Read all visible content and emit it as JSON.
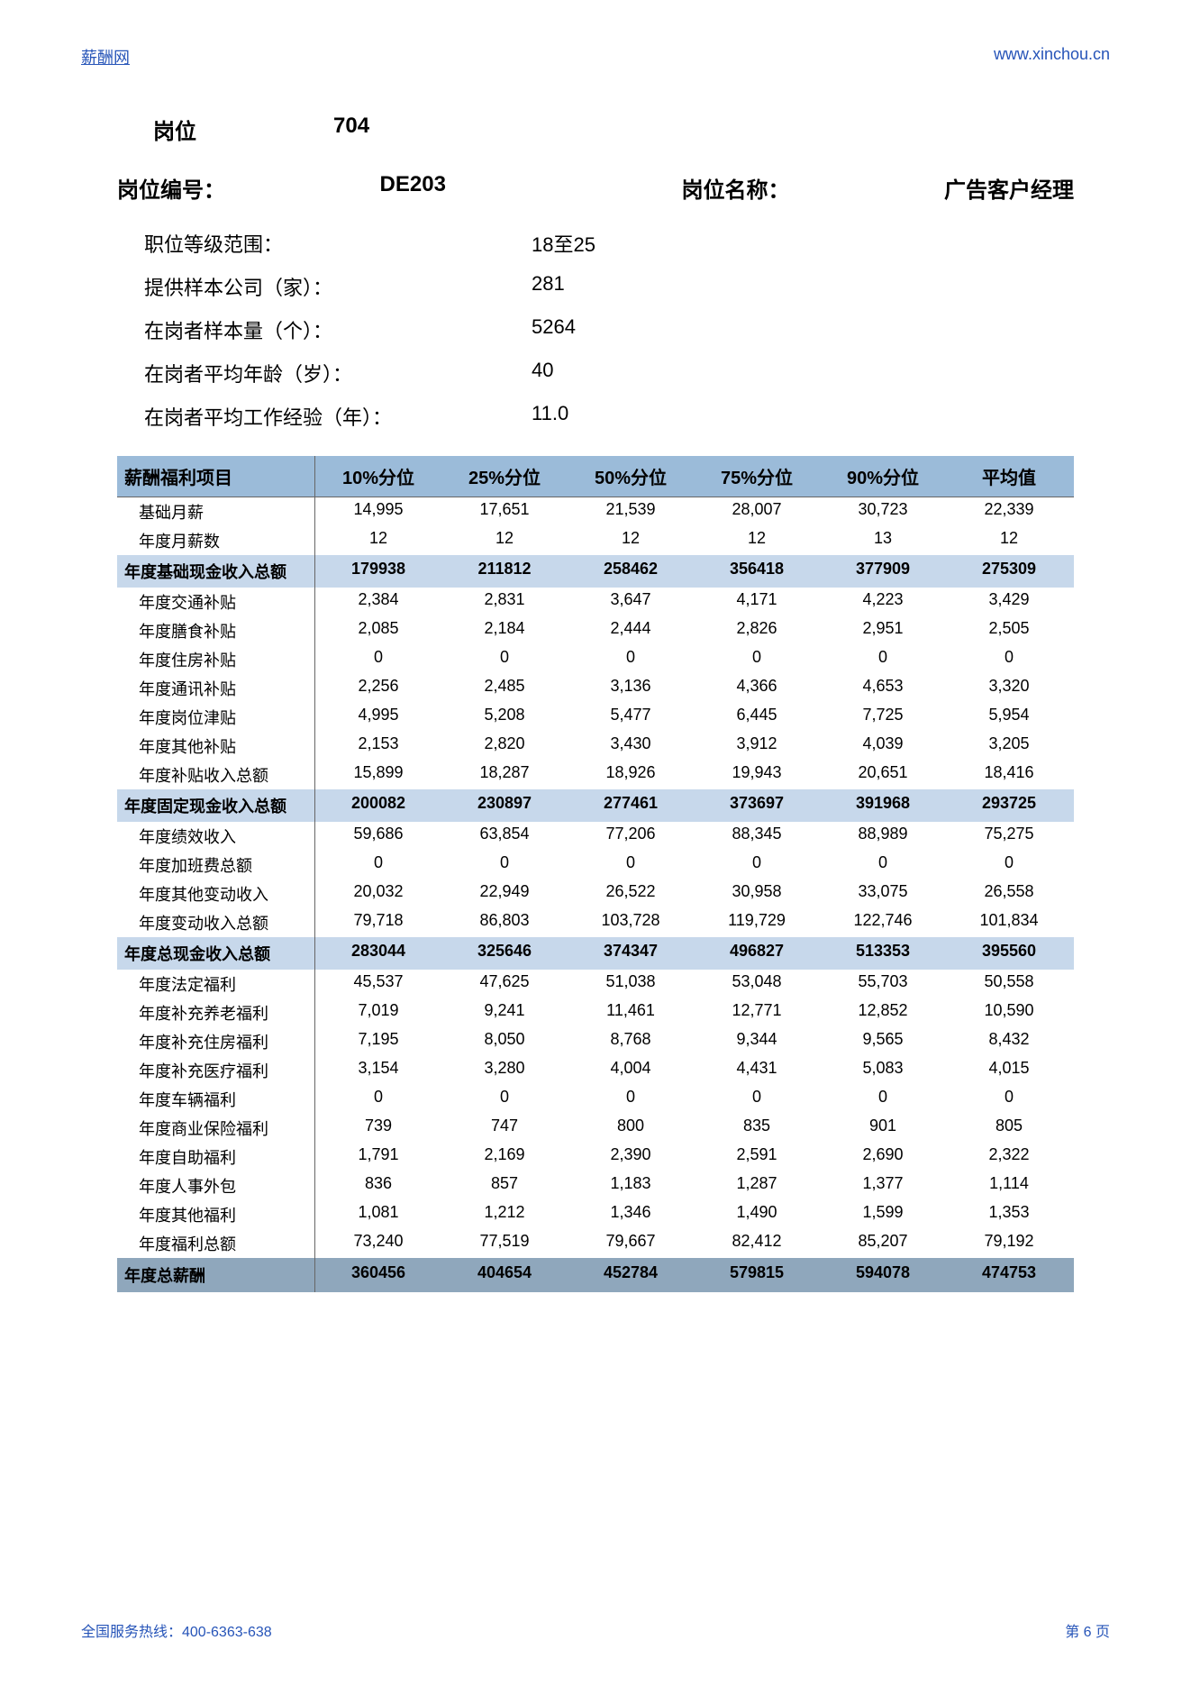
{
  "header": {
    "site_name": "薪酬网",
    "site_url": "www.xinchou.cn"
  },
  "position": {
    "title_label": "岗位",
    "title_value": "704",
    "code_label": "岗位编号：",
    "code_value": "DE203",
    "name_label": "岗位名称：",
    "name_value": "广告客户经理"
  },
  "info": {
    "level_range_label": "职位等级范围：",
    "level_range_value": "18至25",
    "sample_company_label": "提供样本公司（家）：",
    "sample_company_value": "281",
    "sample_count_label": "在岗者样本量（个）：",
    "sample_count_value": "5264",
    "avg_age_label": "在岗者平均年龄（岁）：",
    "avg_age_value": "40",
    "avg_exp_label": "在岗者平均工作经验（年）：",
    "avg_exp_value": "11.0"
  },
  "table": {
    "header": {
      "item": "薪酬福利项目",
      "p10": "10%分位",
      "p25": "25%分位",
      "p50": "50%分位",
      "p75": "75%分位",
      "p90": "90%分位",
      "avg": "平均值"
    },
    "rows": [
      {
        "type": "data",
        "label": "基础月薪",
        "v": [
          "14,995",
          "17,651",
          "21,539",
          "28,007",
          "30,723",
          "22,339"
        ]
      },
      {
        "type": "data",
        "label": "年度月薪数",
        "v": [
          "12",
          "12",
          "12",
          "12",
          "13",
          "12"
        ]
      },
      {
        "type": "sum",
        "label": "年度基础现金收入总额",
        "v": [
          "179938",
          "211812",
          "258462",
          "356418",
          "377909",
          "275309"
        ]
      },
      {
        "type": "data",
        "label": "年度交通补贴",
        "v": [
          "2,384",
          "2,831",
          "3,647",
          "4,171",
          "4,223",
          "3,429"
        ]
      },
      {
        "type": "data",
        "label": "年度膳食补贴",
        "v": [
          "2,085",
          "2,184",
          "2,444",
          "2,826",
          "2,951",
          "2,505"
        ]
      },
      {
        "type": "data",
        "label": "年度住房补贴",
        "v": [
          "0",
          "0",
          "0",
          "0",
          "0",
          "0"
        ]
      },
      {
        "type": "data",
        "label": "年度通讯补贴",
        "v": [
          "2,256",
          "2,485",
          "3,136",
          "4,366",
          "4,653",
          "3,320"
        ]
      },
      {
        "type": "data",
        "label": "年度岗位津贴",
        "v": [
          "4,995",
          "5,208",
          "5,477",
          "6,445",
          "7,725",
          "5,954"
        ]
      },
      {
        "type": "data",
        "label": "年度其他补贴",
        "v": [
          "2,153",
          "2,820",
          "3,430",
          "3,912",
          "4,039",
          "3,205"
        ]
      },
      {
        "type": "data",
        "label": "年度补贴收入总额",
        "v": [
          "15,899",
          "18,287",
          "18,926",
          "19,943",
          "20,651",
          "18,416"
        ]
      },
      {
        "type": "sum",
        "label": "年度固定现金收入总额",
        "v": [
          "200082",
          "230897",
          "277461",
          "373697",
          "391968",
          "293725"
        ]
      },
      {
        "type": "data",
        "label": "年度绩效收入",
        "v": [
          "59,686",
          "63,854",
          "77,206",
          "88,345",
          "88,989",
          "75,275"
        ]
      },
      {
        "type": "data",
        "label": "年度加班费总额",
        "v": [
          "0",
          "0",
          "0",
          "0",
          "0",
          "0"
        ]
      },
      {
        "type": "data",
        "label": "年度其他变动收入",
        "v": [
          "20,032",
          "22,949",
          "26,522",
          "30,958",
          "33,075",
          "26,558"
        ]
      },
      {
        "type": "data",
        "label": "年度变动收入总额",
        "v": [
          "79,718",
          "86,803",
          "103,728",
          "119,729",
          "122,746",
          "101,834"
        ]
      },
      {
        "type": "sum",
        "label": "年度总现金收入总额",
        "v": [
          "283044",
          "325646",
          "374347",
          "496827",
          "513353",
          "395560"
        ]
      },
      {
        "type": "data",
        "label": "年度法定福利",
        "v": [
          "45,537",
          "47,625",
          "51,038",
          "53,048",
          "55,703",
          "50,558"
        ]
      },
      {
        "type": "data",
        "label": "年度补充养老福利",
        "v": [
          "7,019",
          "9,241",
          "11,461",
          "12,771",
          "12,852",
          "10,590"
        ]
      },
      {
        "type": "data",
        "label": "年度补充住房福利",
        "v": [
          "7,195",
          "8,050",
          "8,768",
          "9,344",
          "9,565",
          "8,432"
        ]
      },
      {
        "type": "data",
        "label": "年度补充医疗福利",
        "v": [
          "3,154",
          "3,280",
          "4,004",
          "4,431",
          "5,083",
          "4,015"
        ]
      },
      {
        "type": "data",
        "label": "年度车辆福利",
        "v": [
          "0",
          "0",
          "0",
          "0",
          "0",
          "0"
        ]
      },
      {
        "type": "data",
        "label": "年度商业保险福利",
        "v": [
          "739",
          "747",
          "800",
          "835",
          "901",
          "805"
        ]
      },
      {
        "type": "data",
        "label": "年度自助福利",
        "v": [
          "1,791",
          "2,169",
          "2,390",
          "2,591",
          "2,690",
          "2,322"
        ]
      },
      {
        "type": "data",
        "label": "年度人事外包",
        "v": [
          "836",
          "857",
          "1,183",
          "1,287",
          "1,377",
          "1,114"
        ]
      },
      {
        "type": "data",
        "label": "年度其他福利",
        "v": [
          "1,081",
          "1,212",
          "1,346",
          "1,490",
          "1,599",
          "1,353"
        ]
      },
      {
        "type": "data",
        "label": "年度福利总额",
        "v": [
          "73,240",
          "77,519",
          "79,667",
          "82,412",
          "85,207",
          "79,192"
        ]
      },
      {
        "type": "total",
        "label": "年度总薪酬",
        "v": [
          "360456",
          "404654",
          "452784",
          "579815",
          "594078",
          "474753"
        ]
      }
    ]
  },
  "footer": {
    "hotline": "全国服务热线：400-6363-638",
    "page": "第 6 页"
  },
  "colors": {
    "link": "#2654b8",
    "header_bg": "#9bbbd9",
    "sum_bg": "#c7d8eb",
    "total_bg": "#8fa7bc"
  }
}
